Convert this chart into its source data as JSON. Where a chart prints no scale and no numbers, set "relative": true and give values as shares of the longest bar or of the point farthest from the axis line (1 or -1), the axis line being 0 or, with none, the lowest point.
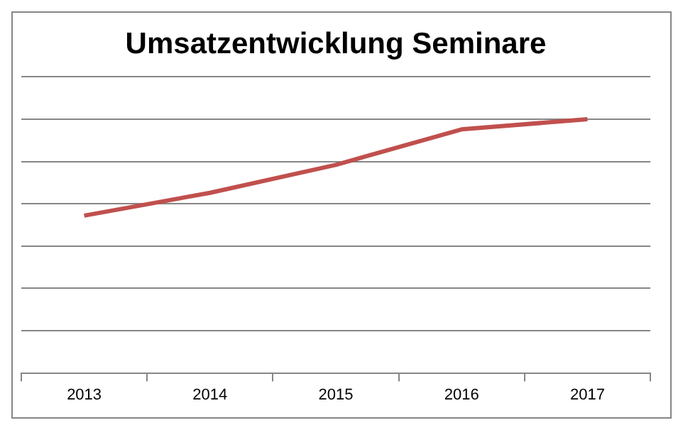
{
  "chart_data": {
    "type": "line",
    "title": "Umsatzentwicklung Seminare",
    "categories": [
      "2013",
      "2014",
      "2015",
      "2016",
      "2017"
    ],
    "series": [
      {
        "color": "#c0504d",
        "values": [
          0.62,
          0.71,
          0.82,
          0.96,
          1
        ]
      }
    ],
    "relative": true,
    "grid": "y",
    "legend": false,
    "marker": "none"
  }
}
